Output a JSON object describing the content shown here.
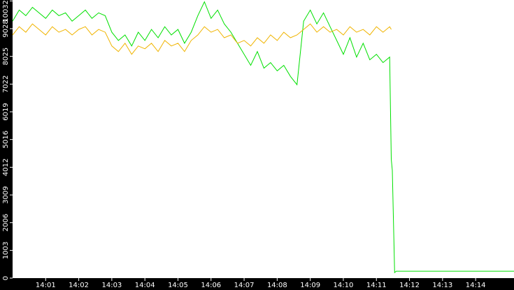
{
  "chart_data": {
    "type": "line",
    "x": [
      0,
      0.2,
      0.4,
      0.6,
      0.8,
      1.0,
      1.2,
      1.4,
      1.6,
      1.8,
      2.0,
      2.2,
      2.4,
      2.6,
      2.8,
      3.0,
      3.2,
      3.4,
      3.6,
      3.8,
      4.0,
      4.2,
      4.4,
      4.6,
      4.8,
      5.0,
      5.2,
      5.4,
      5.6,
      5.8,
      6.0,
      6.2,
      6.4,
      6.6,
      6.8,
      7.0,
      7.2,
      7.4,
      7.6,
      7.8,
      8.0,
      8.2,
      8.4,
      8.6,
      8.8,
      9.0,
      9.2,
      9.4,
      9.6,
      9.8,
      10.0,
      10.2,
      10.4,
      10.6,
      10.8,
      11.0,
      11.2,
      11.4,
      11.45,
      11.48,
      11.55,
      11.6,
      15.16
    ],
    "series": [
      {
        "name": "green",
        "color": "#00e000",
        "values": [
          9300,
          9700,
          9500,
          9800,
          9600,
          9400,
          9700,
          9500,
          9600,
          9300,
          9500,
          9700,
          9400,
          9600,
          9500,
          8900,
          8600,
          8800,
          8400,
          8900,
          8600,
          9000,
          8700,
          9100,
          8800,
          9000,
          8500,
          8900,
          9500,
          10000,
          9400,
          9700,
          9200,
          8900,
          8500,
          8100,
          7700,
          8200,
          7600,
          7800,
          7500,
          7700,
          7300,
          7000,
          9300,
          9700,
          9200,
          9600,
          9100,
          8600,
          8100,
          8700,
          8000,
          8500,
          7900,
          8100,
          7800,
          8000,
          4300,
          3900,
          200,
          250,
          250
        ]
      },
      {
        "name": "orange",
        "color": "#f0b400",
        "values": [
          8800,
          9100,
          8900,
          9200,
          9000,
          8800,
          9100,
          8900,
          9000,
          8800,
          9000,
          9100,
          8800,
          9000,
          8900,
          8400,
          8200,
          8500,
          8100,
          8400,
          8300,
          8500,
          8200,
          8600,
          8400,
          8500,
          8200,
          8600,
          8800,
          9100,
          8900,
          9000,
          8700,
          8800,
          8500,
          8600,
          8400,
          8700,
          8500,
          8800,
          8600,
          8900,
          8700,
          8800,
          9000,
          9200,
          8900,
          9100,
          8900,
          9000,
          8800,
          9100,
          8900,
          9000,
          8800,
          9100,
          8900,
          9100,
          9000,
          null,
          null,
          null,
          null
        ]
      }
    ],
    "xlim": [
      0,
      15.16
    ],
    "ylim": [
      0,
      10040
    ],
    "xticks": [
      {
        "value": 1,
        "label": "14:01"
      },
      {
        "value": 2,
        "label": "14:02"
      },
      {
        "value": 3,
        "label": "14:03"
      },
      {
        "value": 4,
        "label": "14:04"
      },
      {
        "value": 5,
        "label": "14:05"
      },
      {
        "value": 6,
        "label": "14:06"
      },
      {
        "value": 7,
        "label": "14:07"
      },
      {
        "value": 8,
        "label": "14:08"
      },
      {
        "value": 9,
        "label": "14:09"
      },
      {
        "value": 10,
        "label": "14:10"
      },
      {
        "value": 11,
        "label": "14:11"
      },
      {
        "value": 12,
        "label": "14:12"
      },
      {
        "value": 13,
        "label": "14:13"
      },
      {
        "value": 14,
        "label": "14:14"
      }
    ],
    "yticks": [
      0,
      1003,
      2006,
      3009,
      4012,
      5016,
      6019,
      7022,
      8025,
      9028,
      10032
    ]
  }
}
